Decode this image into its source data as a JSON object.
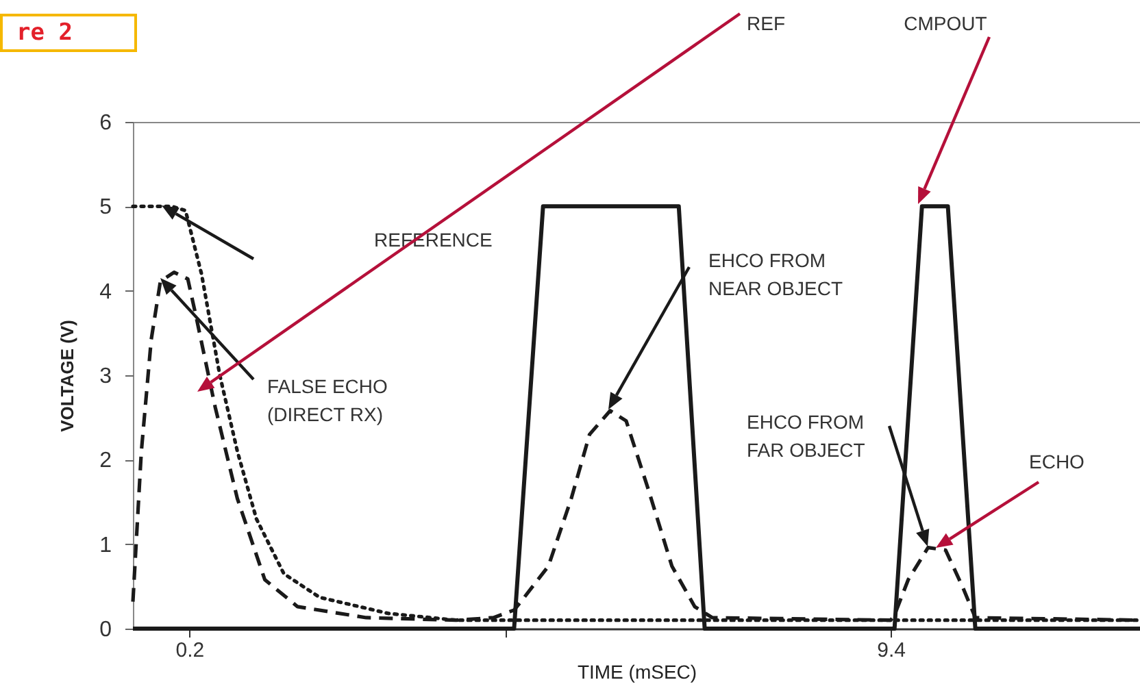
{
  "chart_data": {
    "type": "line",
    "title": "re 2",
    "xlabel": "TIME (mSEC)",
    "ylabel": "VOLTAGE (V)",
    "xlim": [
      -0.54,
      12.67
    ],
    "ylim": [
      0,
      6
    ],
    "xticks": [
      0.2,
      {
        "value": 4.35,
        "label": null
      },
      9.4
    ],
    "yticks": [
      0,
      1,
      2,
      3,
      4,
      5,
      6
    ],
    "grid": false,
    "marker": "none",
    "series": [
      {
        "color": "#1a1a1a",
        "line_style": "solid",
        "x": [
          -0.54,
          4.46,
          4.84,
          6.62,
          6.96,
          9.45,
          9.81,
          10.15,
          10.51,
          12.67
        ],
        "values": [
          0,
          0,
          5,
          5,
          0,
          0,
          5,
          5,
          0,
          0
        ]
      },
      {
        "color": "#1a1a1a",
        "line_style": "dotted",
        "x": [
          -0.54,
          -0.03,
          0.15,
          0.36,
          0.6,
          0.83,
          1.08,
          1.44,
          1.91,
          2.81,
          3.7,
          12.67
        ],
        "values": [
          5,
          5,
          4.95,
          4.2,
          3.0,
          2.1,
          1.3,
          0.65,
          0.37,
          0.18,
          0.1,
          0.1
        ]
      },
      {
        "color": "#1a1a1a",
        "line_style": "dashed",
        "x": [
          -0.54,
          -0.43,
          -0.3,
          -0.18,
          0.0,
          0.18,
          0.29,
          0.54,
          0.83,
          1.19,
          1.62,
          2.52,
          3.7,
          4.19,
          4.46,
          4.55,
          4.91,
          5.21,
          5.45,
          5.72,
          5.93,
          6.22,
          6.53,
          6.83,
          7.06,
          9.4,
          9.45,
          9.63,
          9.89,
          10.12,
          10.35,
          10.51,
          12.67
        ],
        "values": [
          0.32,
          2.09,
          3.42,
          4.11,
          4.22,
          4.14,
          3.69,
          2.62,
          1.54,
          0.58,
          0.26,
          0.13,
          0.1,
          0.13,
          0.22,
          0.32,
          0.74,
          1.54,
          2.3,
          2.58,
          2.46,
          1.65,
          0.74,
          0.26,
          0.13,
          0.1,
          0.16,
          0.58,
          0.96,
          0.93,
          0.48,
          0.13,
          0.1
        ]
      }
    ],
    "annotations": [
      "REFERENCE",
      "FALSE ECHO\n(DIRECT RX)",
      "REF",
      "EHCO FROM\nNEAR OBJECT",
      "EHCO FROM\nFAR OBJECT",
      "ECHO",
      "CMPOUT"
    ]
  }
}
